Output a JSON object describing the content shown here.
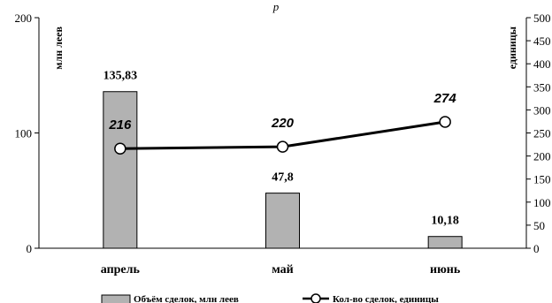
{
  "chart_data": {
    "type": "bar",
    "title": "р",
    "categories": [
      "апрель",
      "май",
      "июнь"
    ],
    "series": [
      {
        "name": "Объём сделок, млн леев",
        "type": "bar",
        "axis": "left",
        "values": [
          135.83,
          47.8,
          10.18
        ],
        "labels": [
          "135,83",
          "47,8",
          "10,18"
        ],
        "color": "#b2b2b2"
      },
      {
        "name": "Кол-во сделок, единицы",
        "type": "line",
        "axis": "right",
        "values": [
          216,
          220,
          274
        ],
        "labels": [
          "216",
          "220",
          "274"
        ],
        "color": "#000000"
      }
    ],
    "ylabel": "млн леев",
    "ylim": [
      0,
      200
    ],
    "yticks": [
      "0",
      "100",
      "200"
    ],
    "y2label": "единицы",
    "y2lim": [
      0,
      500
    ],
    "y2ticks": [
      "0",
      "50",
      "100",
      "150",
      "200",
      "250",
      "300",
      "350",
      "400",
      "450",
      "500"
    ],
    "legend": "bottom",
    "grid": false
  }
}
